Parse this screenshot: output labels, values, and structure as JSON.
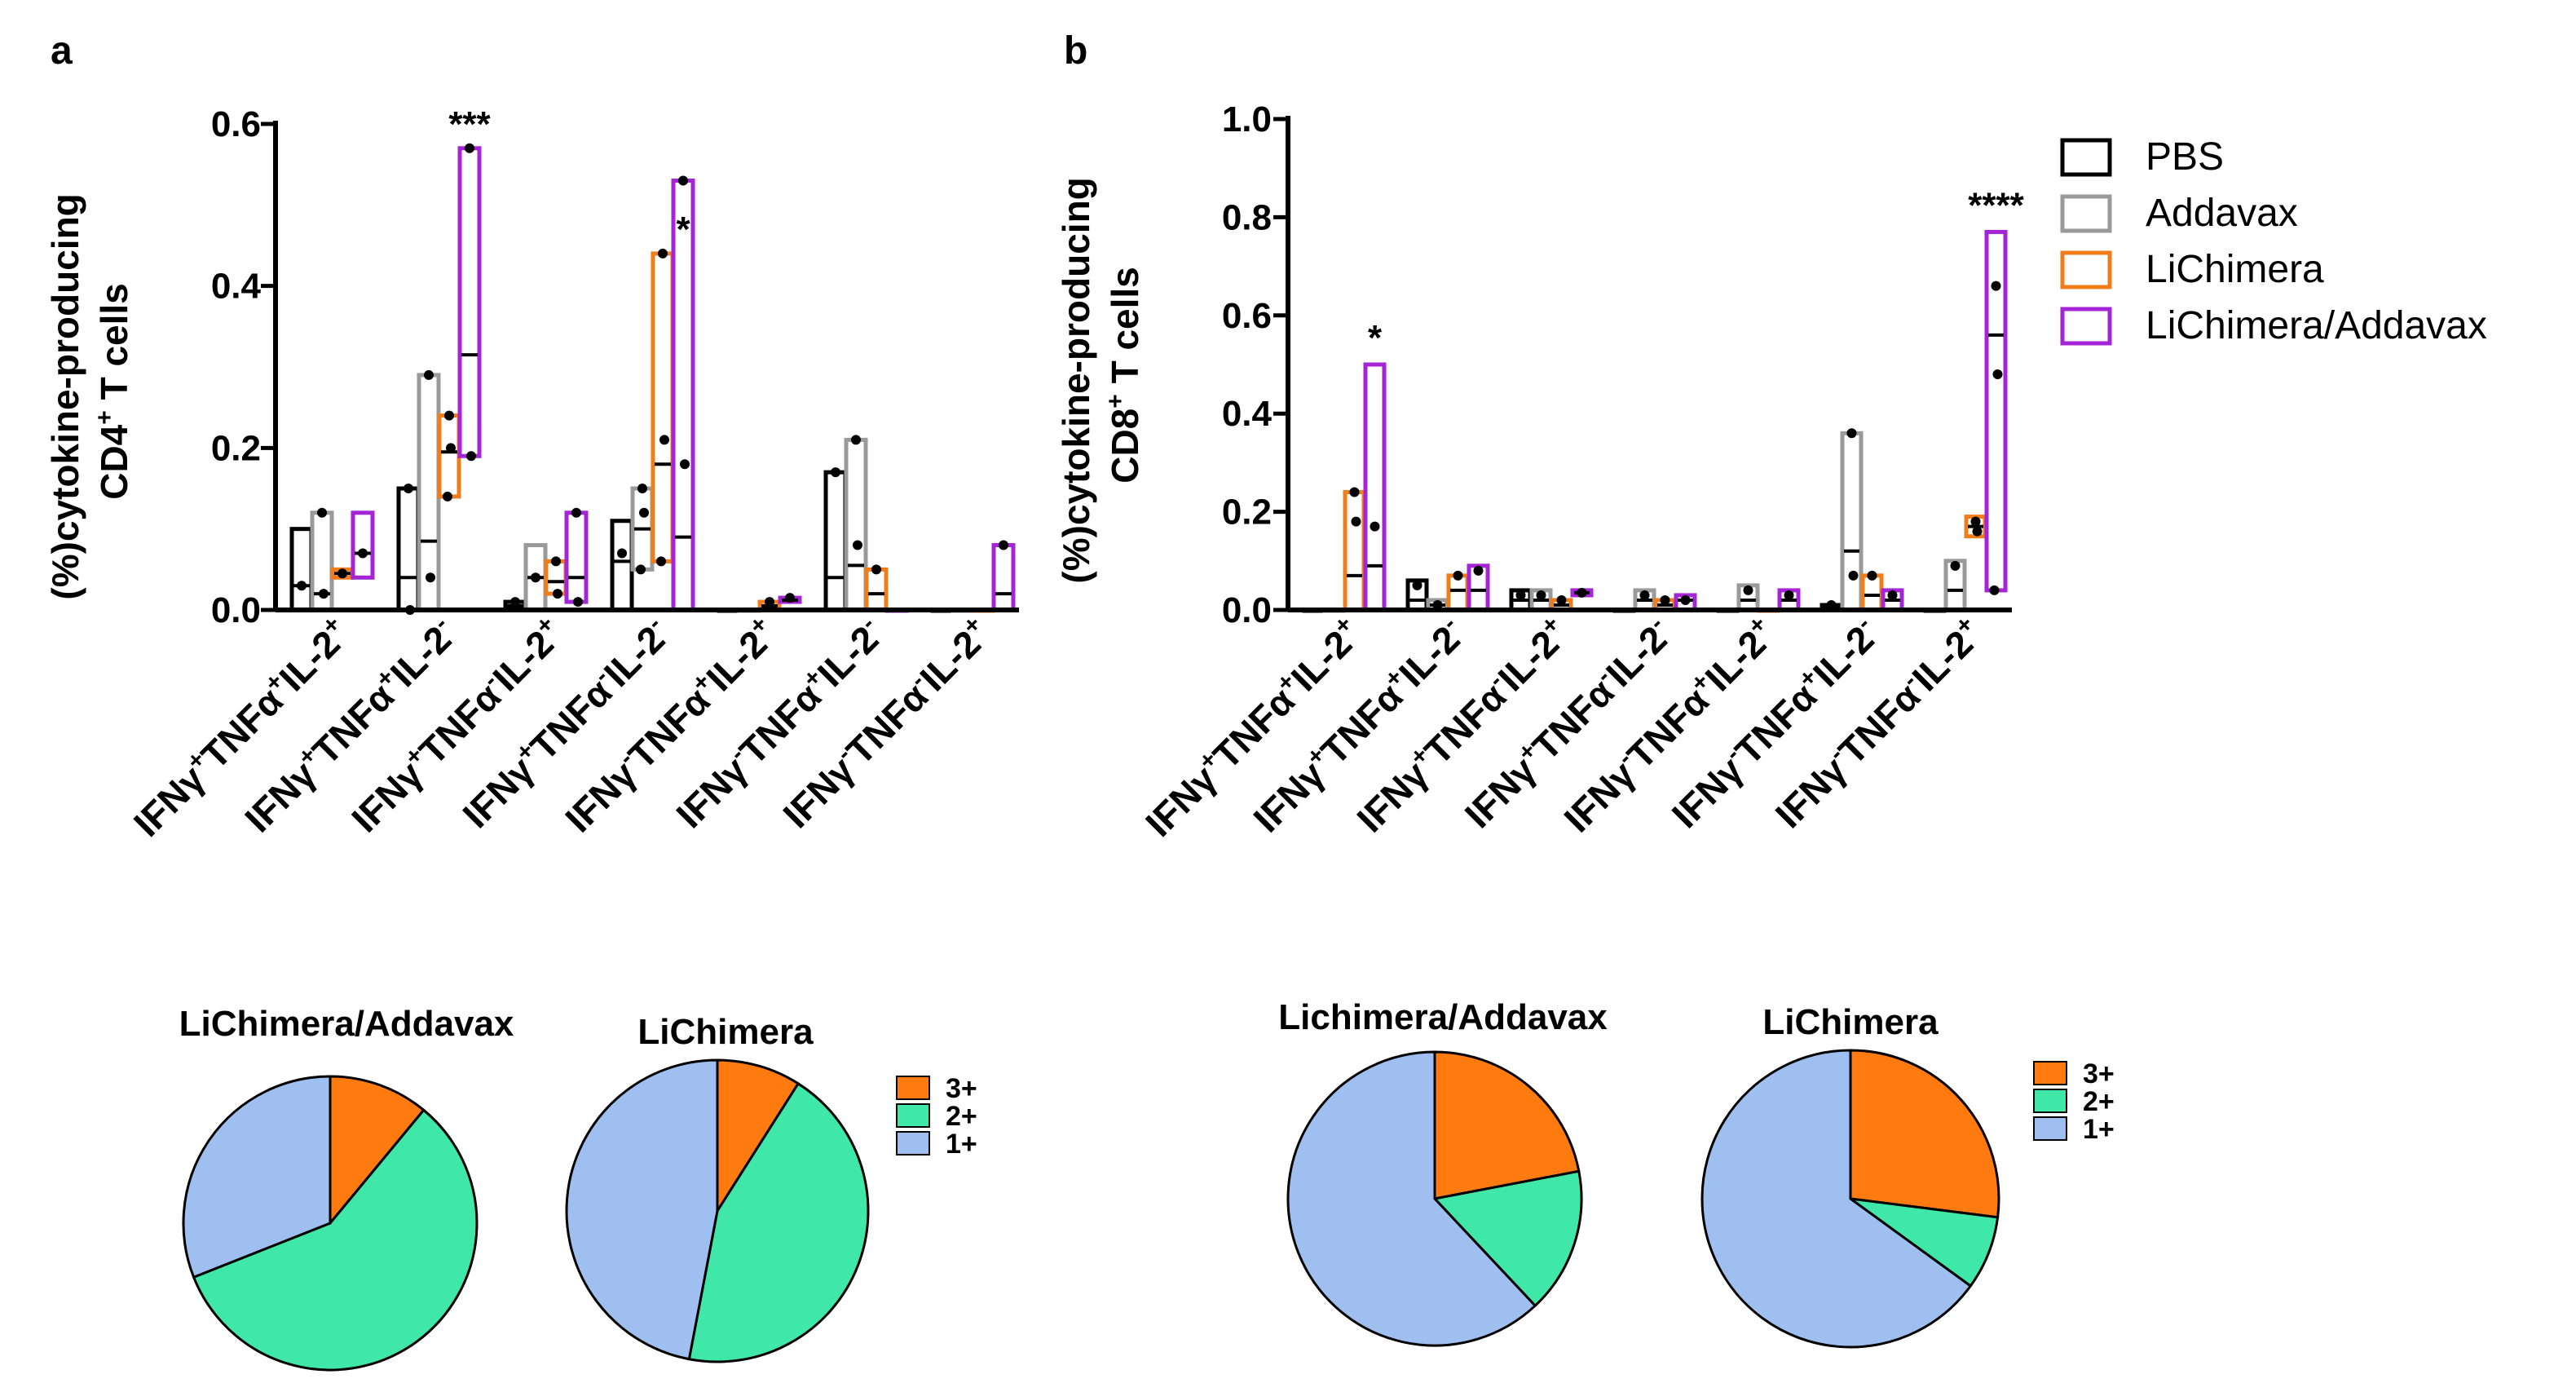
{
  "series_names": [
    "PBS",
    "Addavax",
    "LiChimera",
    "LiChimera/Addavax"
  ],
  "series_colors": [
    "#000000",
    "#9a9a9a",
    "#f07c1a",
    "#a524d6"
  ],
  "panels": {
    "a_label": "a",
    "b_label": "b",
    "a_ylabel_line1": "(%)cytokine-producing",
    "a_ylabel_line2": "CD4",
    "a_ylabel_sup": "+",
    "a_ylabel_tail": " T cells",
    "b_ylabel_line1": "(%)cytokine-producing",
    "b_ylabel_line2": "CD8",
    "b_ylabel_sup": "+",
    "b_ylabel_tail": " T cells"
  },
  "chart_data": [
    {
      "id": "a",
      "type": "bar",
      "title": "",
      "ylabel": "(%)cytokine-producing CD4+ T cells",
      "ylim": [
        0,
        0.6
      ],
      "yticks": [
        "0.0",
        "0.2",
        "0.4",
        "0.6"
      ],
      "categories": [
        [
          "IFNγ",
          "+",
          "TNFα",
          "+",
          "IL-2",
          "+"
        ],
        [
          "IFNγ",
          "+",
          "TNFα",
          "+",
          "IL-2",
          "-"
        ],
        [
          "IFNγ",
          "+",
          "TNFα",
          "-",
          "IL-2",
          "+"
        ],
        [
          "IFNγ",
          "+",
          "TNFα",
          "-",
          "IL-2",
          "-"
        ],
        [
          "IFNγ",
          "-",
          "TNFα",
          "+",
          "IL-2",
          "+"
        ],
        [
          "IFNγ",
          "-",
          "TNFα",
          "+",
          "IL-2",
          "-"
        ],
        [
          "IFNγ",
          "-",
          "TNFα",
          "-",
          "IL-2",
          "+"
        ]
      ],
      "series": [
        {
          "name": "PBS",
          "values": [
            {
              "min": 0.0,
              "max": 0.1,
              "mean": 0.03,
              "points": [
                0.03
              ]
            },
            {
              "min": 0.0,
              "max": 0.15,
              "mean": 0.04,
              "points": [
                0.15,
                0.0
              ]
            },
            {
              "min": 0.0,
              "max": 0.01,
              "mean": 0.005,
              "points": [
                0.01
              ]
            },
            {
              "min": 0.0,
              "max": 0.11,
              "mean": 0.06,
              "points": [
                0.07
              ]
            },
            {
              "min": 0.0,
              "max": 0.0,
              "mean": 0.0,
              "points": []
            },
            {
              "min": 0.0,
              "max": 0.17,
              "mean": 0.04,
              "points": [
                0.17
              ]
            },
            {
              "min": 0.0,
              "max": 0.0,
              "mean": 0.0,
              "points": []
            }
          ]
        },
        {
          "name": "Addavax",
          "values": [
            {
              "min": 0.0,
              "max": 0.12,
              "mean": 0.02,
              "points": [
                0.12,
                0.02
              ]
            },
            {
              "min": 0.0,
              "max": 0.29,
              "mean": 0.085,
              "points": [
                0.29,
                0.04
              ]
            },
            {
              "min": 0.0,
              "max": 0.08,
              "mean": 0.04,
              "points": [
                0.04
              ]
            },
            {
              "min": 0.05,
              "max": 0.15,
              "mean": 0.1,
              "points": [
                0.15,
                0.12,
                0.05
              ]
            },
            {
              "min": 0.0,
              "max": 0.0,
              "mean": 0.0,
              "points": []
            },
            {
              "min": 0.0,
              "max": 0.21,
              "mean": 0.055,
              "points": [
                0.21,
                0.08
              ]
            },
            {
              "min": 0.0,
              "max": 0.0,
              "mean": 0.0,
              "points": []
            }
          ]
        },
        {
          "name": "LiChimera",
          "values": [
            {
              "min": 0.04,
              "max": 0.05,
              "mean": 0.045,
              "points": [
                0.045
              ]
            },
            {
              "min": 0.14,
              "max": 0.24,
              "mean": 0.195,
              "points": [
                0.24,
                0.2,
                0.14
              ]
            },
            {
              "min": 0.02,
              "max": 0.06,
              "mean": 0.035,
              "points": [
                0.06,
                0.02
              ]
            },
            {
              "min": 0.06,
              "max": 0.44,
              "mean": 0.18,
              "points": [
                0.44,
                0.21,
                0.06
              ]
            },
            {
              "min": 0.0,
              "max": 0.01,
              "mean": 0.005,
              "points": [
                0.01
              ]
            },
            {
              "min": 0.0,
              "max": 0.05,
              "mean": 0.02,
              "points": [
                0.05
              ]
            },
            {
              "min": 0.0,
              "max": 0.0,
              "mean": 0.0,
              "points": []
            }
          ]
        },
        {
          "name": "LiChimera/Addavax",
          "values": [
            {
              "min": 0.04,
              "max": 0.12,
              "mean": 0.07,
              "points": [
                0.07
              ]
            },
            {
              "min": 0.19,
              "max": 0.57,
              "mean": 0.315,
              "points": [
                0.57,
                0.19
              ]
            },
            {
              "min": 0.01,
              "max": 0.12,
              "mean": 0.04,
              "points": [
                0.12,
                0.01
              ]
            },
            {
              "min": 0.0,
              "max": 0.53,
              "mean": 0.09,
              "points": [
                0.53,
                0.18
              ]
            },
            {
              "min": 0.01,
              "max": 0.015,
              "mean": 0.012,
              "points": [
                0.015
              ]
            },
            {
              "min": 0.0,
              "max": 0.0,
              "mean": 0.0,
              "points": []
            },
            {
              "min": 0.0,
              "max": 0.08,
              "mean": 0.02,
              "points": [
                0.08
              ]
            }
          ]
        }
      ],
      "annotations": [
        {
          "text": "***",
          "category": 1,
          "value": 0.585
        },
        {
          "text": "*",
          "category": 3,
          "value": 0.455
        }
      ]
    },
    {
      "id": "b",
      "type": "bar",
      "title": "",
      "ylabel": "(%)cytokine-producing CD8+ T cells",
      "ylim": [
        0,
        1.0
      ],
      "yticks": [
        "0.0",
        "0.2",
        "0.4",
        "0.6",
        "0.8",
        "1.0"
      ],
      "categories": [
        [
          "IFNγ",
          "+",
          "TNFα",
          "+",
          "IL-2",
          "+"
        ],
        [
          "IFNγ",
          "+",
          "TNFα",
          "+",
          "IL-2",
          "-"
        ],
        [
          "IFNγ",
          "+",
          "TNFα",
          "-",
          "IL-2",
          "+"
        ],
        [
          "IFNγ",
          "+",
          "TNFα",
          "-",
          "IL-2",
          "-"
        ],
        [
          "IFNγ",
          "-",
          "TNFα",
          "+",
          "IL-2",
          "+"
        ],
        [
          "IFNγ",
          "-",
          "TNFα",
          "+",
          "IL-2",
          "-"
        ],
        [
          "IFNγ",
          "-",
          "TNFα",
          "-",
          "IL-2",
          "+"
        ]
      ],
      "series": [
        {
          "name": "PBS",
          "values": [
            {
              "min": 0.0,
              "max": 0.0,
              "mean": 0.0,
              "points": []
            },
            {
              "min": 0.0,
              "max": 0.06,
              "mean": 0.02,
              "points": [
                0.05
              ]
            },
            {
              "min": 0.0,
              "max": 0.04,
              "mean": 0.02,
              "points": [
                0.03
              ]
            },
            {
              "min": 0.0,
              "max": 0.0,
              "mean": 0.0,
              "points": []
            },
            {
              "min": 0.0,
              "max": 0.0,
              "mean": 0.0,
              "points": []
            },
            {
              "min": 0.0,
              "max": 0.01,
              "mean": 0.005,
              "points": [
                0.01
              ]
            },
            {
              "min": 0.0,
              "max": 0.0,
              "mean": 0.0,
              "points": []
            }
          ]
        },
        {
          "name": "Addavax",
          "values": [
            {
              "min": 0.0,
              "max": 0.0,
              "mean": 0.0,
              "points": []
            },
            {
              "min": 0.0,
              "max": 0.02,
              "mean": 0.01,
              "points": [
                0.01
              ]
            },
            {
              "min": 0.0,
              "max": 0.04,
              "mean": 0.02,
              "points": [
                0.03
              ]
            },
            {
              "min": 0.0,
              "max": 0.04,
              "mean": 0.02,
              "points": [
                0.03
              ]
            },
            {
              "min": 0.0,
              "max": 0.05,
              "mean": 0.02,
              "points": [
                0.04
              ]
            },
            {
              "min": 0.0,
              "max": 0.36,
              "mean": 0.12,
              "points": [
                0.36,
                0.07
              ]
            },
            {
              "min": 0.0,
              "max": 0.1,
              "mean": 0.04,
              "points": [
                0.09
              ]
            }
          ]
        },
        {
          "name": "LiChimera",
          "values": [
            {
              "min": 0.0,
              "max": 0.24,
              "mean": 0.07,
              "points": [
                0.24,
                0.18
              ]
            },
            {
              "min": 0.0,
              "max": 0.07,
              "mean": 0.04,
              "points": [
                0.07
              ]
            },
            {
              "min": 0.0,
              "max": 0.02,
              "mean": 0.01,
              "points": [
                0.02
              ]
            },
            {
              "min": 0.0,
              "max": 0.02,
              "mean": 0.01,
              "points": [
                0.02
              ]
            },
            {
              "min": 0.0,
              "max": 0.0,
              "mean": 0.0,
              "points": []
            },
            {
              "min": 0.0,
              "max": 0.07,
              "mean": 0.03,
              "points": [
                0.07
              ]
            },
            {
              "min": 0.15,
              "max": 0.19,
              "mean": 0.17,
              "points": [
                0.18,
                0.16
              ]
            }
          ]
        },
        {
          "name": "LiChimera/Addavax",
          "values": [
            {
              "min": 0.0,
              "max": 0.5,
              "mean": 0.09,
              "points": [
                0.17
              ]
            },
            {
              "min": 0.0,
              "max": 0.09,
              "mean": 0.04,
              "points": [
                0.08
              ]
            },
            {
              "min": 0.03,
              "max": 0.04,
              "mean": 0.035,
              "points": [
                0.035
              ]
            },
            {
              "min": 0.0,
              "max": 0.03,
              "mean": 0.02,
              "points": [
                0.02
              ]
            },
            {
              "min": 0.0,
              "max": 0.04,
              "mean": 0.02,
              "points": [
                0.03
              ]
            },
            {
              "min": 0.0,
              "max": 0.04,
              "mean": 0.02,
              "points": [
                0.03
              ]
            },
            {
              "min": 0.04,
              "max": 0.77,
              "mean": 0.56,
              "points": [
                0.66,
                0.48,
                0.04
              ]
            }
          ]
        }
      ],
      "annotations": [
        {
          "text": "*",
          "category": 0,
          "value": 0.53
        },
        {
          "text": "****",
          "category": 6,
          "value": 0.8
        }
      ]
    },
    {
      "id": "pie_a1",
      "type": "pie",
      "title": "LiChimera/Addavax",
      "labels": [
        "3+",
        "2+",
        "1+"
      ],
      "values": [
        11,
        58,
        31
      ]
    },
    {
      "id": "pie_a2",
      "type": "pie",
      "title": "LiChimera",
      "labels": [
        "3+",
        "2+",
        "1+"
      ],
      "values": [
        9,
        44,
        47
      ]
    },
    {
      "id": "pie_b1",
      "type": "pie",
      "title": "Lichimera/Addavax",
      "labels": [
        "3+",
        "2+",
        "1+"
      ],
      "values": [
        22,
        16,
        62
      ]
    },
    {
      "id": "pie_b2",
      "type": "pie",
      "title": "LiChimera",
      "labels": [
        "3+",
        "2+",
        "1+"
      ],
      "values": [
        27,
        8,
        65
      ]
    }
  ],
  "pie_colors": [
    "#ff7b10",
    "#3fe8a8",
    "#9ebfef"
  ]
}
